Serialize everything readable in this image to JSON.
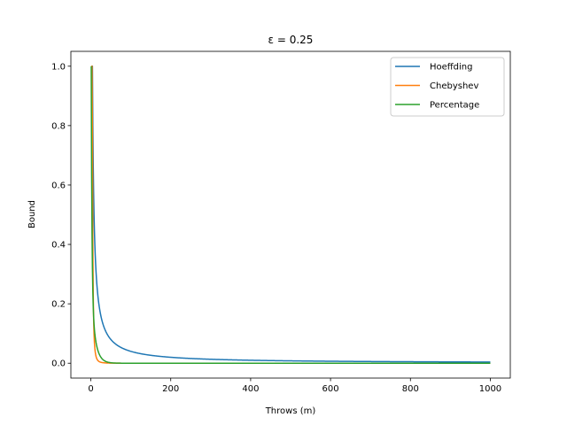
{
  "chart_data": {
    "type": "line",
    "title": "ε = 0.25",
    "xlabel": "Throws (m)",
    "ylabel": "Bound",
    "xlim": [
      -50,
      1050
    ],
    "ylim": [
      -0.05,
      1.05
    ],
    "xticks": [
      0,
      200,
      400,
      600,
      800,
      1000
    ],
    "yticks": [
      0.0,
      0.2,
      0.4,
      0.6,
      0.8,
      1.0
    ],
    "xtick_labels": [
      "0",
      "200",
      "400",
      "600",
      "800",
      "1000"
    ],
    "ytick_labels": [
      "0.0",
      "0.2",
      "0.4",
      "0.6",
      "0.8",
      "1.0"
    ],
    "epsilon": 0.25,
    "x_start": 1,
    "x_end": 1000,
    "legend_position": "top-right",
    "series": [
      {
        "name": "Hoeffding",
        "color": "#1f77b4",
        "formula": "min(1, 1/(4*eps^2*m))",
        "points_sample": [
          [
            1,
            1.0
          ],
          [
            4,
            1.0
          ],
          [
            10,
            0.4
          ],
          [
            20,
            0.2
          ],
          [
            100,
            0.04
          ],
          [
            500,
            0.008
          ],
          [
            1000,
            0.004
          ]
        ]
      },
      {
        "name": "Chebyshev",
        "color": "#ff7f0e",
        "formula": "min(1, exp(-2*eps^2*m))",
        "points_sample": [
          [
            1,
            0.882
          ],
          [
            10,
            0.287
          ],
          [
            20,
            0.082
          ],
          [
            40,
            0.007
          ],
          [
            100,
            0.0
          ],
          [
            1000,
            0.0
          ]
        ]
      },
      {
        "name": "Percentage",
        "color": "#2ca02c",
        "formula": "empirical",
        "points_sample": [
          [
            1,
            1.0
          ],
          [
            2,
            0.58
          ],
          [
            3,
            0.34
          ],
          [
            5,
            0.2
          ],
          [
            10,
            0.08
          ],
          [
            20,
            0.02
          ],
          [
            50,
            0.002
          ],
          [
            100,
            0.0
          ],
          [
            1000,
            0.0
          ]
        ]
      }
    ]
  }
}
